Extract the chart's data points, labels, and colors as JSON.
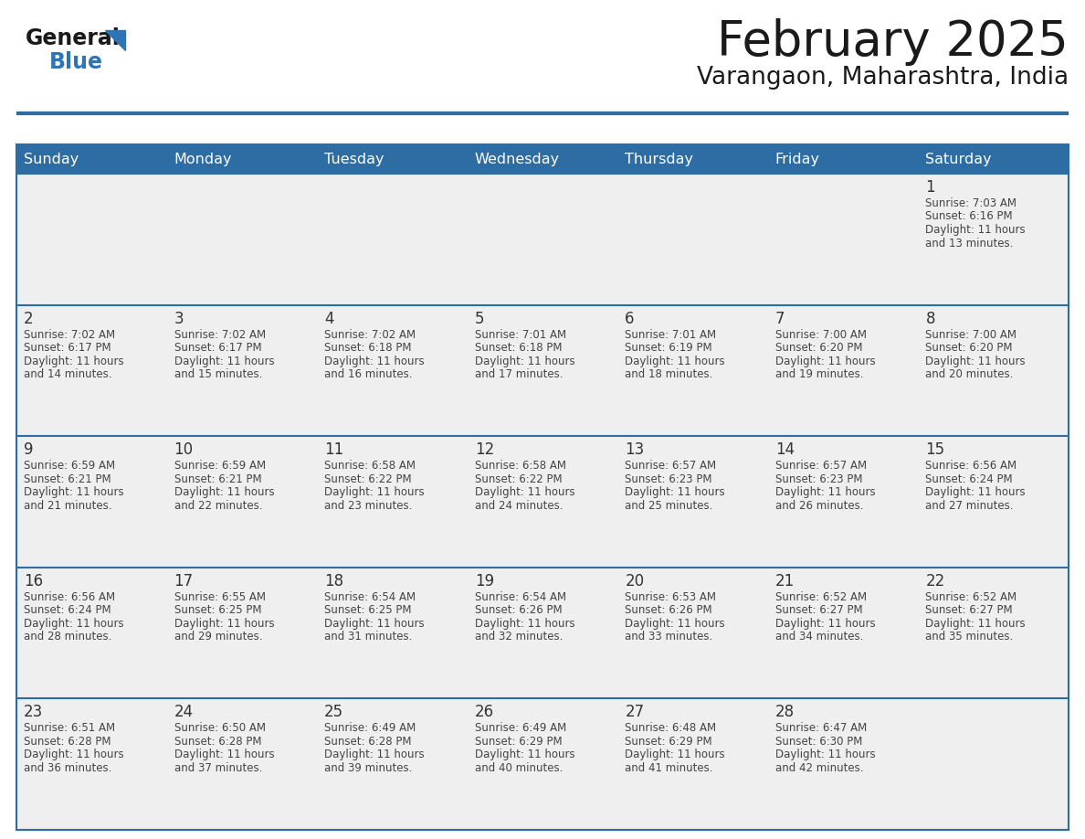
{
  "title": "February 2025",
  "subtitle": "Varangaon, Maharashtra, India",
  "header_bg_color": "#2E6DA4",
  "header_text_color": "#FFFFFF",
  "cell_bg_color": "#EFEFEF",
  "text_color": "#444444",
  "day_number_color": "#333333",
  "line_color": "#2E6DA4",
  "days_of_week": [
    "Sunday",
    "Monday",
    "Tuesday",
    "Wednesday",
    "Thursday",
    "Friday",
    "Saturday"
  ],
  "calendar_data": [
    [
      null,
      null,
      null,
      null,
      null,
      null,
      {
        "day": 1,
        "sunrise": "7:03 AM",
        "sunset": "6:16 PM",
        "daylight_hours": 11,
        "daylight_minutes": 13
      }
    ],
    [
      {
        "day": 2,
        "sunrise": "7:02 AM",
        "sunset": "6:17 PM",
        "daylight_hours": 11,
        "daylight_minutes": 14
      },
      {
        "day": 3,
        "sunrise": "7:02 AM",
        "sunset": "6:17 PM",
        "daylight_hours": 11,
        "daylight_minutes": 15
      },
      {
        "day": 4,
        "sunrise": "7:02 AM",
        "sunset": "6:18 PM",
        "daylight_hours": 11,
        "daylight_minutes": 16
      },
      {
        "day": 5,
        "sunrise": "7:01 AM",
        "sunset": "6:18 PM",
        "daylight_hours": 11,
        "daylight_minutes": 17
      },
      {
        "day": 6,
        "sunrise": "7:01 AM",
        "sunset": "6:19 PM",
        "daylight_hours": 11,
        "daylight_minutes": 18
      },
      {
        "day": 7,
        "sunrise": "7:00 AM",
        "sunset": "6:20 PM",
        "daylight_hours": 11,
        "daylight_minutes": 19
      },
      {
        "day": 8,
        "sunrise": "7:00 AM",
        "sunset": "6:20 PM",
        "daylight_hours": 11,
        "daylight_minutes": 20
      }
    ],
    [
      {
        "day": 9,
        "sunrise": "6:59 AM",
        "sunset": "6:21 PM",
        "daylight_hours": 11,
        "daylight_minutes": 21
      },
      {
        "day": 10,
        "sunrise": "6:59 AM",
        "sunset": "6:21 PM",
        "daylight_hours": 11,
        "daylight_minutes": 22
      },
      {
        "day": 11,
        "sunrise": "6:58 AM",
        "sunset": "6:22 PM",
        "daylight_hours": 11,
        "daylight_minutes": 23
      },
      {
        "day": 12,
        "sunrise": "6:58 AM",
        "sunset": "6:22 PM",
        "daylight_hours": 11,
        "daylight_minutes": 24
      },
      {
        "day": 13,
        "sunrise": "6:57 AM",
        "sunset": "6:23 PM",
        "daylight_hours": 11,
        "daylight_minutes": 25
      },
      {
        "day": 14,
        "sunrise": "6:57 AM",
        "sunset": "6:23 PM",
        "daylight_hours": 11,
        "daylight_minutes": 26
      },
      {
        "day": 15,
        "sunrise": "6:56 AM",
        "sunset": "6:24 PM",
        "daylight_hours": 11,
        "daylight_minutes": 27
      }
    ],
    [
      {
        "day": 16,
        "sunrise": "6:56 AM",
        "sunset": "6:24 PM",
        "daylight_hours": 11,
        "daylight_minutes": 28
      },
      {
        "day": 17,
        "sunrise": "6:55 AM",
        "sunset": "6:25 PM",
        "daylight_hours": 11,
        "daylight_minutes": 29
      },
      {
        "day": 18,
        "sunrise": "6:54 AM",
        "sunset": "6:25 PM",
        "daylight_hours": 11,
        "daylight_minutes": 31
      },
      {
        "day": 19,
        "sunrise": "6:54 AM",
        "sunset": "6:26 PM",
        "daylight_hours": 11,
        "daylight_minutes": 32
      },
      {
        "day": 20,
        "sunrise": "6:53 AM",
        "sunset": "6:26 PM",
        "daylight_hours": 11,
        "daylight_minutes": 33
      },
      {
        "day": 21,
        "sunrise": "6:52 AM",
        "sunset": "6:27 PM",
        "daylight_hours": 11,
        "daylight_minutes": 34
      },
      {
        "day": 22,
        "sunrise": "6:52 AM",
        "sunset": "6:27 PM",
        "daylight_hours": 11,
        "daylight_minutes": 35
      }
    ],
    [
      {
        "day": 23,
        "sunrise": "6:51 AM",
        "sunset": "6:28 PM",
        "daylight_hours": 11,
        "daylight_minutes": 36
      },
      {
        "day": 24,
        "sunrise": "6:50 AM",
        "sunset": "6:28 PM",
        "daylight_hours": 11,
        "daylight_minutes": 37
      },
      {
        "day": 25,
        "sunrise": "6:49 AM",
        "sunset": "6:28 PM",
        "daylight_hours": 11,
        "daylight_minutes": 39
      },
      {
        "day": 26,
        "sunrise": "6:49 AM",
        "sunset": "6:29 PM",
        "daylight_hours": 11,
        "daylight_minutes": 40
      },
      {
        "day": 27,
        "sunrise": "6:48 AM",
        "sunset": "6:29 PM",
        "daylight_hours": 11,
        "daylight_minutes": 41
      },
      {
        "day": 28,
        "sunrise": "6:47 AM",
        "sunset": "6:30 PM",
        "daylight_hours": 11,
        "daylight_minutes": 42
      },
      null
    ]
  ],
  "logo_general_color": "#1a1a1a",
  "logo_blue_color": "#2E75B6",
  "logo_triangle_color": "#2E75B6"
}
